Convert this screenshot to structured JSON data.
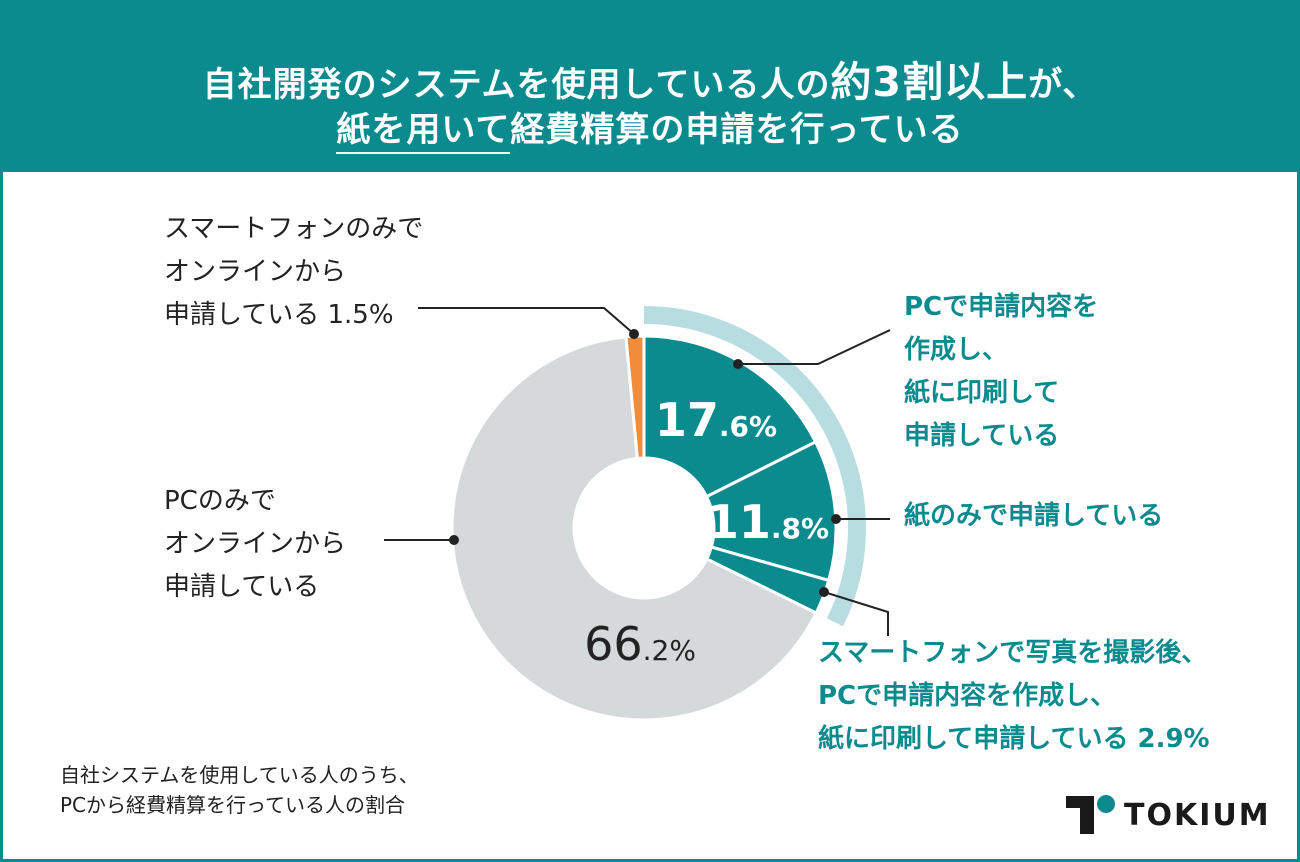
{
  "header": {
    "line1_pre": "自社開発のシステムを使用している人の",
    "line1_em": "約3割以上",
    "line1_post": "が、",
    "line2_ul": "紙を用いて",
    "line2_rest": "経費精算の申請を行っている"
  },
  "chart_data": {
    "type": "pie",
    "style": "donut",
    "slices": [
      {
        "label": "PCで申請内容を\n作成し、\n紙に印刷して\n申請している",
        "value": 17.6,
        "display_int": "17",
        "display_dec": ".6%",
        "color": "#0c8b8f"
      },
      {
        "label": "紙のみで申請している",
        "value": 11.8,
        "display_int": "11",
        "display_dec": ".8%",
        "color": "#0c8b8f"
      },
      {
        "label": "スマートフォンで写真を撮影後、\nPCで申請内容を作成し、\n紙に印刷して申請している 2.9%",
        "value": 2.9,
        "color": "#0c8b8f"
      },
      {
        "label": "PCのみで\nオンラインから\n申請している",
        "value": 66.2,
        "display_int": "66",
        "display_dec": ".2%",
        "color": "#d6d9d9"
      },
      {
        "label": "スマートフォンのみで\nオンラインから\n申請している 1.5%",
        "value": 1.5,
        "color": "#f08c3a"
      }
    ],
    "highlight_arc_color": "#b7dde0",
    "highlight_arc_slices": [
      0,
      1,
      2
    ]
  },
  "footnote": "自社システムを使用している人のうち、\nPCから経費精算を行っている人の割合",
  "brand": {
    "name": "TOKIUM",
    "color": "#0c8b8f"
  }
}
